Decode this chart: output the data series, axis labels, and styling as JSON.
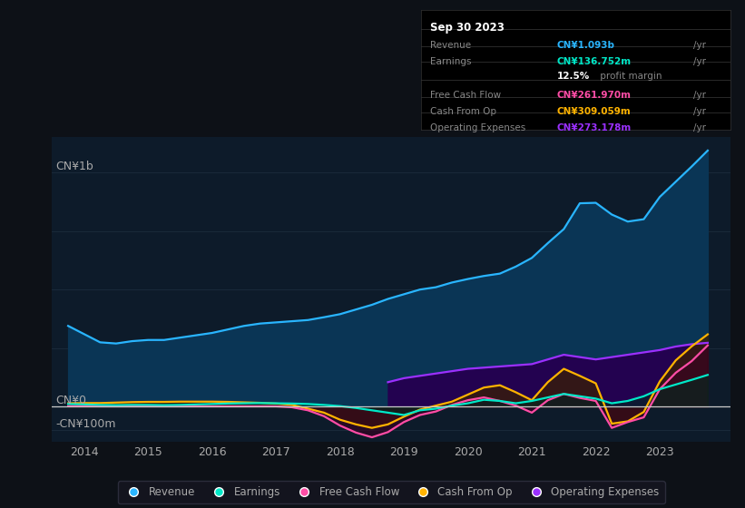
{
  "bg_color": "#0d1117",
  "plot_bg_color": "#0d1b2a",
  "y_label_top": "CN¥1b",
  "y_label_bottom": "-CN¥100m",
  "y_label_zero": "CN¥0",
  "x_ticks": [
    2014,
    2015,
    2016,
    2017,
    2018,
    2019,
    2020,
    2021,
    2022,
    2023
  ],
  "info_box": {
    "date": "Sep 30 2023",
    "revenue_label": "Revenue",
    "revenue_value": "CN¥1.093b",
    "revenue_color": "#29b5ff",
    "earnings_label": "Earnings",
    "earnings_value": "CN¥136.752m",
    "earnings_color": "#00e8c8",
    "profit_margin": "12.5% profit margin",
    "fcf_label": "Free Cash Flow",
    "fcf_value": "CN¥261.970m",
    "fcf_color": "#ff4da6",
    "cashop_label": "Cash From Op",
    "cashop_value": "CN¥309.059m",
    "cashop_color": "#ffb300",
    "opex_label": "Operating Expenses",
    "opex_value": "CN¥273.178m",
    "opex_color": "#9b30ff"
  },
  "revenue_x": [
    2013.75,
    2014.0,
    2014.25,
    2014.5,
    2014.75,
    2015.0,
    2015.25,
    2015.5,
    2015.75,
    2016.0,
    2016.25,
    2016.5,
    2016.75,
    2017.0,
    2017.25,
    2017.5,
    2017.75,
    2018.0,
    2018.25,
    2018.5,
    2018.75,
    2019.0,
    2019.25,
    2019.5,
    2019.75,
    2020.0,
    2020.25,
    2020.5,
    2020.75,
    2021.0,
    2021.25,
    2021.5,
    2021.75,
    2022.0,
    2022.25,
    2022.5,
    2022.75,
    2023.0,
    2023.25,
    2023.5,
    2023.75
  ],
  "revenue_y": [
    345,
    310,
    275,
    270,
    280,
    285,
    285,
    295,
    305,
    315,
    330,
    345,
    355,
    360,
    365,
    370,
    382,
    395,
    415,
    435,
    460,
    480,
    500,
    510,
    530,
    545,
    558,
    568,
    598,
    635,
    698,
    758,
    868,
    870,
    820,
    790,
    800,
    895,
    960,
    1025,
    1093
  ],
  "earnings_x": [
    2013.75,
    2014.0,
    2014.25,
    2014.5,
    2014.75,
    2015.0,
    2015.25,
    2015.5,
    2015.75,
    2016.0,
    2016.25,
    2016.5,
    2016.75,
    2017.0,
    2017.25,
    2017.5,
    2017.75,
    2018.0,
    2018.25,
    2018.5,
    2018.75,
    2019.0,
    2019.25,
    2019.5,
    2019.75,
    2020.0,
    2020.25,
    2020.5,
    2020.75,
    2021.0,
    2021.25,
    2021.5,
    2021.75,
    2022.0,
    2022.25,
    2022.5,
    2022.75,
    2023.0,
    2023.25,
    2023.5,
    2023.75
  ],
  "earnings_y": [
    12,
    10,
    8,
    7,
    8,
    8,
    7,
    8,
    10,
    12,
    14,
    15,
    16,
    15,
    14,
    12,
    8,
    3,
    -5,
    -15,
    -25,
    -35,
    -15,
    -8,
    5,
    15,
    30,
    25,
    15,
    25,
    40,
    55,
    45,
    35,
    15,
    25,
    45,
    75,
    95,
    115,
    136
  ],
  "fcf_x": [
    2013.75,
    2014.0,
    2014.25,
    2014.5,
    2014.75,
    2015.0,
    2015.25,
    2015.5,
    2015.75,
    2016.0,
    2016.25,
    2016.5,
    2016.75,
    2017.0,
    2017.25,
    2017.5,
    2017.75,
    2018.0,
    2018.25,
    2018.5,
    2018.75,
    2019.0,
    2019.25,
    2019.5,
    2019.75,
    2020.0,
    2020.25,
    2020.5,
    2020.75,
    2021.0,
    2021.25,
    2021.5,
    2021.75,
    2022.0,
    2022.25,
    2022.5,
    2022.75,
    2023.0,
    2023.25,
    2023.5,
    2023.75
  ],
  "fcf_y": [
    3,
    3,
    2,
    2,
    2,
    2,
    2,
    2,
    2,
    2,
    2,
    2,
    2,
    2,
    -2,
    -15,
    -40,
    -80,
    -110,
    -130,
    -108,
    -65,
    -35,
    -20,
    8,
    28,
    40,
    25,
    5,
    -25,
    28,
    55,
    38,
    25,
    -90,
    -65,
    -45,
    75,
    145,
    195,
    262
  ],
  "cashop_x": [
    2013.75,
    2014.0,
    2014.25,
    2014.5,
    2014.75,
    2015.0,
    2015.25,
    2015.5,
    2015.75,
    2016.0,
    2016.25,
    2016.5,
    2016.75,
    2017.0,
    2017.25,
    2017.5,
    2017.75,
    2018.0,
    2018.25,
    2018.5,
    2018.75,
    2019.0,
    2019.25,
    2019.5,
    2019.75,
    2020.0,
    2020.25,
    2020.5,
    2020.75,
    2021.0,
    2021.25,
    2021.5,
    2021.75,
    2022.0,
    2022.25,
    2022.5,
    2022.75,
    2023.0,
    2023.25,
    2023.5,
    2023.75
  ],
  "cashop_y": [
    15,
    16,
    16,
    18,
    20,
    21,
    21,
    22,
    22,
    22,
    21,
    19,
    17,
    14,
    8,
    -8,
    -25,
    -55,
    -75,
    -90,
    -75,
    -42,
    -12,
    5,
    22,
    52,
    82,
    92,
    62,
    28,
    105,
    162,
    132,
    100,
    -72,
    -62,
    -22,
    108,
    198,
    258,
    309
  ],
  "opex_x": [
    2018.75,
    2019.0,
    2019.25,
    2019.5,
    2019.75,
    2020.0,
    2020.25,
    2020.5,
    2020.75,
    2021.0,
    2021.25,
    2021.5,
    2021.75,
    2022.0,
    2022.25,
    2022.5,
    2022.75,
    2023.0,
    2023.25,
    2023.5,
    2023.75
  ],
  "opex_y": [
    105,
    122,
    132,
    142,
    152,
    162,
    167,
    172,
    177,
    182,
    202,
    222,
    212,
    202,
    212,
    222,
    232,
    242,
    257,
    267,
    273
  ],
  "ylim": [
    -150,
    1150
  ],
  "xlim": [
    2013.5,
    2024.1
  ],
  "grid_color": "#1a2a3a",
  "zero_line_color": "#cccccc",
  "text_color": "#aaaaaa",
  "revenue_color": "#29b5ff",
  "revenue_fill": "#0a3555",
  "earnings_color": "#00e8c8",
  "earnings_fill": "#002a20",
  "fcf_color": "#ff4da6",
  "fcf_fill": "#3a0020",
  "cashop_color": "#ffb300",
  "cashop_fill": "#3a2000",
  "opex_color": "#9b30ff",
  "opex_fill": "#250050",
  "legend": [
    {
      "label": "Revenue",
      "color": "#29b5ff"
    },
    {
      "label": "Earnings",
      "color": "#00e8c8"
    },
    {
      "label": "Free Cash Flow",
      "color": "#ff4da6"
    },
    {
      "label": "Cash From Op",
      "color": "#ffb300"
    },
    {
      "label": "Operating Expenses",
      "color": "#9b30ff"
    }
  ]
}
